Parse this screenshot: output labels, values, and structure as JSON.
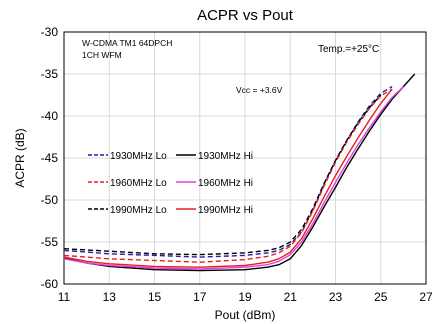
{
  "chart_data": {
    "type": "line",
    "title": "ACPR vs Pout",
    "xlabel": "Pout (dBm)",
    "ylabel": "ACPR (dB)",
    "xlim": [
      11,
      27
    ],
    "ylim": [
      -60,
      -30
    ],
    "xticks": [
      "11",
      "13",
      "15",
      "17",
      "19",
      "21",
      "23",
      "25",
      "27"
    ],
    "yticks": [
      "-30",
      "-35",
      "-40",
      "-45",
      "-50",
      "-55",
      "-60"
    ],
    "grid": true,
    "legend_position": "center-left",
    "annotations": [
      "W-CDMA TM1 64DPCH",
      "1CH WFM",
      "Temp.=+25°C",
      "Vcc = +3.6V"
    ],
    "series": [
      {
        "name": "1930MHz Lo",
        "color": "#1f1fa8",
        "dash": "dashed",
        "x": [
          11,
          13,
          15,
          17,
          19,
          20,
          20.5,
          21,
          21.5,
          22,
          22.5,
          23,
          23.5,
          24,
          24.5,
          25,
          25.5
        ],
        "y": [
          -56.0,
          -56.4,
          -56.6,
          -56.8,
          -56.6,
          -56.3,
          -56.0,
          -55.3,
          -53.8,
          -51.2,
          -48.1,
          -45.3,
          -42.9,
          -40.7,
          -38.8,
          -37.3,
          -36.5
        ]
      },
      {
        "name": "1930MHz Hi",
        "color": "#000000",
        "dash": "solid",
        "x": [
          11,
          12,
          13,
          15,
          17,
          19,
          20,
          20.5,
          21,
          21.5,
          22,
          22.5,
          23,
          23.5,
          24,
          24.5,
          25,
          25.5,
          26,
          26.5
        ],
        "y": [
          -56.9,
          -57.5,
          -57.9,
          -58.3,
          -58.4,
          -58.3,
          -58.0,
          -57.7,
          -57.0,
          -55.4,
          -53.2,
          -50.8,
          -48.5,
          -46.1,
          -43.9,
          -41.8,
          -39.8,
          -38.0,
          -36.5,
          -35.0
        ]
      },
      {
        "name": "1960MHz Lo",
        "color": "#e8201f",
        "dash": "dashed",
        "x": [
          11,
          13,
          15,
          17,
          19,
          20,
          20.5,
          21,
          21.5,
          22,
          22.5,
          23,
          23.5,
          24,
          24.5,
          25,
          25.5
        ],
        "y": [
          -56.6,
          -57.0,
          -57.2,
          -57.4,
          -57.1,
          -56.7,
          -56.3,
          -55.5,
          -53.9,
          -51.3,
          -48.3,
          -45.5,
          -43.1,
          -41.0,
          -39.1,
          -37.6,
          -36.8
        ]
      },
      {
        "name": "1960MHz Hi",
        "color": "#e040e0",
        "dash": "solid",
        "x": [
          11,
          12,
          13,
          15,
          17,
          19,
          20,
          20.5,
          21,
          21.5,
          22,
          22.5,
          23,
          23.5,
          24,
          24.5,
          25,
          25.5,
          26
        ],
        "y": [
          -57.0,
          -57.5,
          -57.8,
          -58.1,
          -58.2,
          -58.0,
          -57.7,
          -57.3,
          -56.5,
          -55.0,
          -52.8,
          -50.3,
          -47.9,
          -45.6,
          -43.4,
          -41.4,
          -39.5,
          -37.8,
          -36.5
        ]
      },
      {
        "name": "1990MHz Lo",
        "color": "#000000",
        "dash": "dashed",
        "x": [
          11,
          13,
          15,
          17,
          19,
          20,
          20.5,
          21,
          21.5,
          22,
          22.5,
          23,
          23.5,
          24,
          24.5,
          25
        ],
        "y": [
          -55.8,
          -56.1,
          -56.4,
          -56.5,
          -56.3,
          -56.0,
          -55.7,
          -55.0,
          -53.5,
          -51.0,
          -48.0,
          -45.3,
          -42.9,
          -40.8,
          -39.0,
          -37.5
        ]
      },
      {
        "name": "1990MHz Hi",
        "color": "#e8201f",
        "dash": "solid",
        "x": [
          11,
          12,
          13,
          15,
          17,
          19,
          20,
          20.5,
          21,
          21.5,
          22,
          22.5,
          23,
          23.5,
          24,
          24.5,
          25,
          25.5
        ],
        "y": [
          -56.8,
          -57.3,
          -57.6,
          -57.9,
          -58.0,
          -57.8,
          -57.4,
          -57.0,
          -56.2,
          -54.6,
          -52.2,
          -49.6,
          -47.1,
          -44.8,
          -42.6,
          -40.5,
          -38.5,
          -36.8
        ]
      }
    ]
  }
}
